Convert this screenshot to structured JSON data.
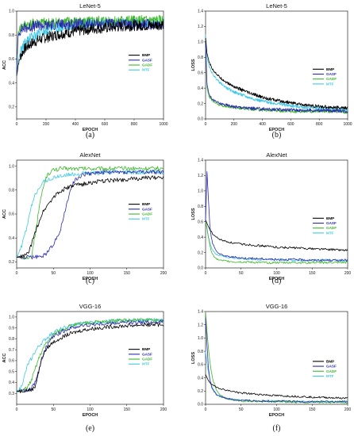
{
  "chart_data": [
    {
      "type": "line",
      "caption": "(a)",
      "title": "LeNet-5",
      "xlabel": "EPOCH",
      "ylabel": "ACC",
      "xlim": [
        0,
        1000
      ],
      "ylim": [
        0.1,
        1.0
      ],
      "xticks": [
        0,
        200,
        400,
        600,
        800,
        1000
      ],
      "yticks": [
        0.2,
        0.4,
        0.6,
        0.8,
        1.0
      ],
      "x": [
        0,
        10,
        25,
        50,
        100,
        150,
        200,
        300,
        400,
        500,
        600,
        700,
        800,
        900,
        1000
      ],
      "series": [
        {
          "name": "BMP",
          "color": "#000000",
          "values": [
            0.46,
            0.55,
            0.62,
            0.68,
            0.73,
            0.76,
            0.78,
            0.81,
            0.83,
            0.85,
            0.86,
            0.87,
            0.88,
            0.88,
            0.89
          ]
        },
        {
          "name": "GASF",
          "color": "#2b2bb0",
          "values": [
            0.5,
            0.8,
            0.84,
            0.86,
            0.87,
            0.88,
            0.88,
            0.89,
            0.89,
            0.89,
            0.89,
            0.89,
            0.89,
            0.89,
            0.89
          ]
        },
        {
          "name": "GADF",
          "color": "#3cb82a",
          "values": [
            0.52,
            0.82,
            0.86,
            0.88,
            0.89,
            0.9,
            0.9,
            0.91,
            0.91,
            0.91,
            0.92,
            0.92,
            0.92,
            0.92,
            0.92
          ]
        },
        {
          "name": "MTF",
          "color": "#3ec8e6",
          "values": [
            0.46,
            0.58,
            0.66,
            0.72,
            0.78,
            0.81,
            0.84,
            0.87,
            0.88,
            0.89,
            0.9,
            0.9,
            0.9,
            0.9,
            0.9
          ]
        }
      ],
      "legend_position": "right"
    },
    {
      "type": "line",
      "caption": "(b)",
      "title": "LeNet-5",
      "xlabel": "EPOCH",
      "ylabel": "LOSS",
      "xlim": [
        0,
        1000
      ],
      "ylim": [
        0.0,
        1.4
      ],
      "xticks": [
        0,
        200,
        400,
        600,
        800,
        1000
      ],
      "yticks": [
        0.0,
        0.2,
        0.4,
        0.6,
        0.8,
        1.0,
        1.2,
        1.4
      ],
      "x": [
        0,
        10,
        25,
        50,
        100,
        150,
        200,
        300,
        400,
        500,
        600,
        700,
        800,
        900,
        1000
      ],
      "series": [
        {
          "name": "BMP",
          "color": "#000000",
          "values": [
            1.05,
            0.85,
            0.74,
            0.64,
            0.54,
            0.47,
            0.42,
            0.34,
            0.28,
            0.24,
            0.21,
            0.18,
            0.16,
            0.15,
            0.14
          ]
        },
        {
          "name": "GASF",
          "color": "#2b2bb0",
          "values": [
            1.0,
            0.45,
            0.32,
            0.25,
            0.2,
            0.18,
            0.16,
            0.14,
            0.13,
            0.12,
            0.12,
            0.11,
            0.11,
            0.11,
            0.1
          ]
        },
        {
          "name": "GADF",
          "color": "#3cb82a",
          "values": [
            1.0,
            0.4,
            0.29,
            0.23,
            0.18,
            0.16,
            0.15,
            0.13,
            0.12,
            0.11,
            0.1,
            0.1,
            0.1,
            0.1,
            0.09
          ]
        },
        {
          "name": "MTF",
          "color": "#3ec8e6",
          "values": [
            1.1,
            0.8,
            0.68,
            0.58,
            0.47,
            0.4,
            0.35,
            0.28,
            0.23,
            0.2,
            0.17,
            0.15,
            0.14,
            0.13,
            0.12
          ]
        }
      ],
      "legend_position": "right"
    },
    {
      "type": "line",
      "caption": "(c)",
      "title": "AlexNet",
      "xlabel": "EPOCH",
      "ylabel": "ACC",
      "xlim": [
        0,
        200
      ],
      "ylim": [
        0.15,
        1.05
      ],
      "xticks": [
        0,
        50,
        100,
        150,
        200
      ],
      "yticks": [
        0.2,
        0.4,
        0.6,
        0.8,
        1.0
      ],
      "x": [
        0,
        5,
        10,
        15,
        20,
        25,
        30,
        35,
        40,
        45,
        50,
        55,
        60,
        65,
        70,
        75,
        80,
        90,
        100,
        125,
        150,
        175,
        200
      ],
      "series": [
        {
          "name": "BMP",
          "color": "#000000",
          "values": [
            0.24,
            0.24,
            0.25,
            0.27,
            0.34,
            0.44,
            0.53,
            0.61,
            0.66,
            0.7,
            0.74,
            0.77,
            0.79,
            0.81,
            0.82,
            0.83,
            0.84,
            0.85,
            0.86,
            0.88,
            0.89,
            0.9,
            0.91
          ]
        },
        {
          "name": "GASF",
          "color": "#2b2bb0",
          "values": [
            0.24,
            0.24,
            0.24,
            0.24,
            0.24,
            0.24,
            0.24,
            0.25,
            0.27,
            0.31,
            0.35,
            0.4,
            0.48,
            0.6,
            0.73,
            0.83,
            0.89,
            0.93,
            0.94,
            0.95,
            0.95,
            0.95,
            0.95
          ]
        },
        {
          "name": "GADF",
          "color": "#3cb82a",
          "values": [
            0.24,
            0.24,
            0.24,
            0.24,
            0.24,
            0.42,
            0.62,
            0.8,
            0.9,
            0.95,
            0.97,
            0.97,
            0.98,
            0.98,
            0.98,
            0.98,
            0.98,
            0.98,
            0.98,
            0.98,
            0.98,
            0.98,
            0.98
          ]
        },
        {
          "name": "MTF",
          "color": "#3ec8e6",
          "values": [
            0.24,
            0.3,
            0.4,
            0.52,
            0.66,
            0.76,
            0.82,
            0.86,
            0.88,
            0.89,
            0.9,
            0.91,
            0.92,
            0.92,
            0.93,
            0.93,
            0.93,
            0.94,
            0.94,
            0.95,
            0.95,
            0.95,
            0.95
          ]
        }
      ],
      "legend_position": "right"
    },
    {
      "type": "line",
      "caption": "(d)",
      "title": "AlexNet",
      "xlabel": "EPOCH",
      "ylabel": "LOSS",
      "xlim": [
        0,
        200
      ],
      "ylim": [
        0.0,
        1.4
      ],
      "xticks": [
        0,
        50,
        100,
        150,
        200
      ],
      "yticks": [
        0.0,
        0.2,
        0.4,
        0.6,
        0.8,
        1.0,
        1.2,
        1.4
      ],
      "x": [
        0,
        2,
        4,
        6,
        8,
        10,
        15,
        20,
        30,
        40,
        50,
        75,
        100,
        125,
        150,
        175,
        200
      ],
      "series": [
        {
          "name": "BMP",
          "color": "#000000",
          "values": [
            0.62,
            0.58,
            0.54,
            0.5,
            0.47,
            0.44,
            0.4,
            0.37,
            0.34,
            0.32,
            0.31,
            0.29,
            0.27,
            0.26,
            0.25,
            0.24,
            0.23
          ]
        },
        {
          "name": "GASF",
          "color": "#2b2bb0",
          "values": [
            0.6,
            1.25,
            0.9,
            0.55,
            0.4,
            0.32,
            0.22,
            0.18,
            0.15,
            0.14,
            0.13,
            0.12,
            0.11,
            0.11,
            0.1,
            0.1,
            0.1
          ]
        },
        {
          "name": "GADF",
          "color": "#3cb82a",
          "values": [
            0.6,
            0.52,
            0.4,
            0.3,
            0.22,
            0.17,
            0.12,
            0.1,
            0.09,
            0.08,
            0.08,
            0.07,
            0.07,
            0.07,
            0.07,
            0.07,
            0.07
          ]
        },
        {
          "name": "MTF",
          "color": "#3ec8e6",
          "values": [
            0.62,
            0.5,
            0.4,
            0.33,
            0.27,
            0.23,
            0.18,
            0.16,
            0.14,
            0.13,
            0.12,
            0.11,
            0.11,
            0.1,
            0.1,
            0.1,
            0.1
          ]
        }
      ],
      "legend_position": "right"
    },
    {
      "type": "line",
      "caption": "(e)",
      "title": "VGG-16",
      "xlabel": "EPOCH",
      "ylabel": "ACC",
      "xlim": [
        0,
        200
      ],
      "ylim": [
        0.2,
        1.05
      ],
      "xticks": [
        0,
        50,
        100,
        150,
        200
      ],
      "yticks": [
        0.3,
        0.4,
        0.5,
        0.6,
        0.7,
        0.8,
        0.9,
        1.0
      ],
      "x": [
        0,
        5,
        10,
        15,
        20,
        25,
        30,
        35,
        40,
        45,
        50,
        60,
        70,
        80,
        90,
        100,
        125,
        150,
        175,
        200
      ],
      "series": [
        {
          "name": "BMP",
          "color": "#000000",
          "values": [
            0.32,
            0.32,
            0.33,
            0.33,
            0.33,
            0.36,
            0.5,
            0.64,
            0.7,
            0.74,
            0.77,
            0.81,
            0.84,
            0.86,
            0.88,
            0.89,
            0.91,
            0.92,
            0.93,
            0.93
          ]
        },
        {
          "name": "GASF",
          "color": "#2b2bb0",
          "values": [
            0.32,
            0.32,
            0.32,
            0.33,
            0.34,
            0.4,
            0.5,
            0.62,
            0.72,
            0.78,
            0.82,
            0.86,
            0.89,
            0.91,
            0.92,
            0.93,
            0.94,
            0.95,
            0.95,
            0.96
          ]
        },
        {
          "name": "GADF",
          "color": "#3cb82a",
          "values": [
            0.32,
            0.32,
            0.33,
            0.36,
            0.42,
            0.52,
            0.62,
            0.7,
            0.76,
            0.8,
            0.84,
            0.88,
            0.91,
            0.93,
            0.94,
            0.95,
            0.96,
            0.97,
            0.97,
            0.97
          ]
        },
        {
          "name": "MTF",
          "color": "#3ec8e6",
          "values": [
            0.32,
            0.34,
            0.44,
            0.56,
            0.62,
            0.68,
            0.73,
            0.77,
            0.8,
            0.83,
            0.86,
            0.89,
            0.91,
            0.93,
            0.94,
            0.95,
            0.96,
            0.97,
            0.97,
            0.97
          ]
        }
      ],
      "legend_position": "right"
    },
    {
      "type": "line",
      "caption": "(f)",
      "title": "VGG-16",
      "xlabel": "EPOCH",
      "ylabel": "LOSS",
      "xlim": [
        0,
        200
      ],
      "ylim": [
        0.0,
        1.4
      ],
      "xticks": [
        0,
        50,
        100,
        150,
        200
      ],
      "yticks": [
        0.0,
        0.2,
        0.4,
        0.6,
        0.8,
        1.0,
        1.2,
        1.4
      ],
      "x": [
        0,
        2,
        4,
        6,
        8,
        10,
        15,
        20,
        30,
        40,
        50,
        75,
        100,
        125,
        150,
        175,
        200
      ],
      "series": [
        {
          "name": "BMP",
          "color": "#000000",
          "values": [
            0.45,
            0.4,
            0.36,
            0.33,
            0.31,
            0.29,
            0.26,
            0.24,
            0.21,
            0.19,
            0.17,
            0.15,
            0.13,
            0.12,
            0.11,
            0.1,
            0.09
          ]
        },
        {
          "name": "GASF",
          "color": "#2b2bb0",
          "values": [
            1.3,
            0.9,
            0.55,
            0.38,
            0.28,
            0.22,
            0.15,
            0.12,
            0.09,
            0.07,
            0.06,
            0.05,
            0.05,
            0.04,
            0.04,
            0.04,
            0.04
          ]
        },
        {
          "name": "GADF",
          "color": "#3cb82a",
          "values": [
            1.4,
            1.1,
            0.85,
            0.65,
            0.5,
            0.38,
            0.22,
            0.14,
            0.08,
            0.06,
            0.05,
            0.04,
            0.04,
            0.03,
            0.03,
            0.03,
            0.03
          ]
        },
        {
          "name": "MTF",
          "color": "#3ec8e6",
          "values": [
            0.8,
            0.62,
            0.48,
            0.38,
            0.3,
            0.24,
            0.16,
            0.12,
            0.09,
            0.07,
            0.06,
            0.05,
            0.05,
            0.04,
            0.04,
            0.04,
            0.04
          ]
        }
      ],
      "legend_position": "right"
    }
  ]
}
